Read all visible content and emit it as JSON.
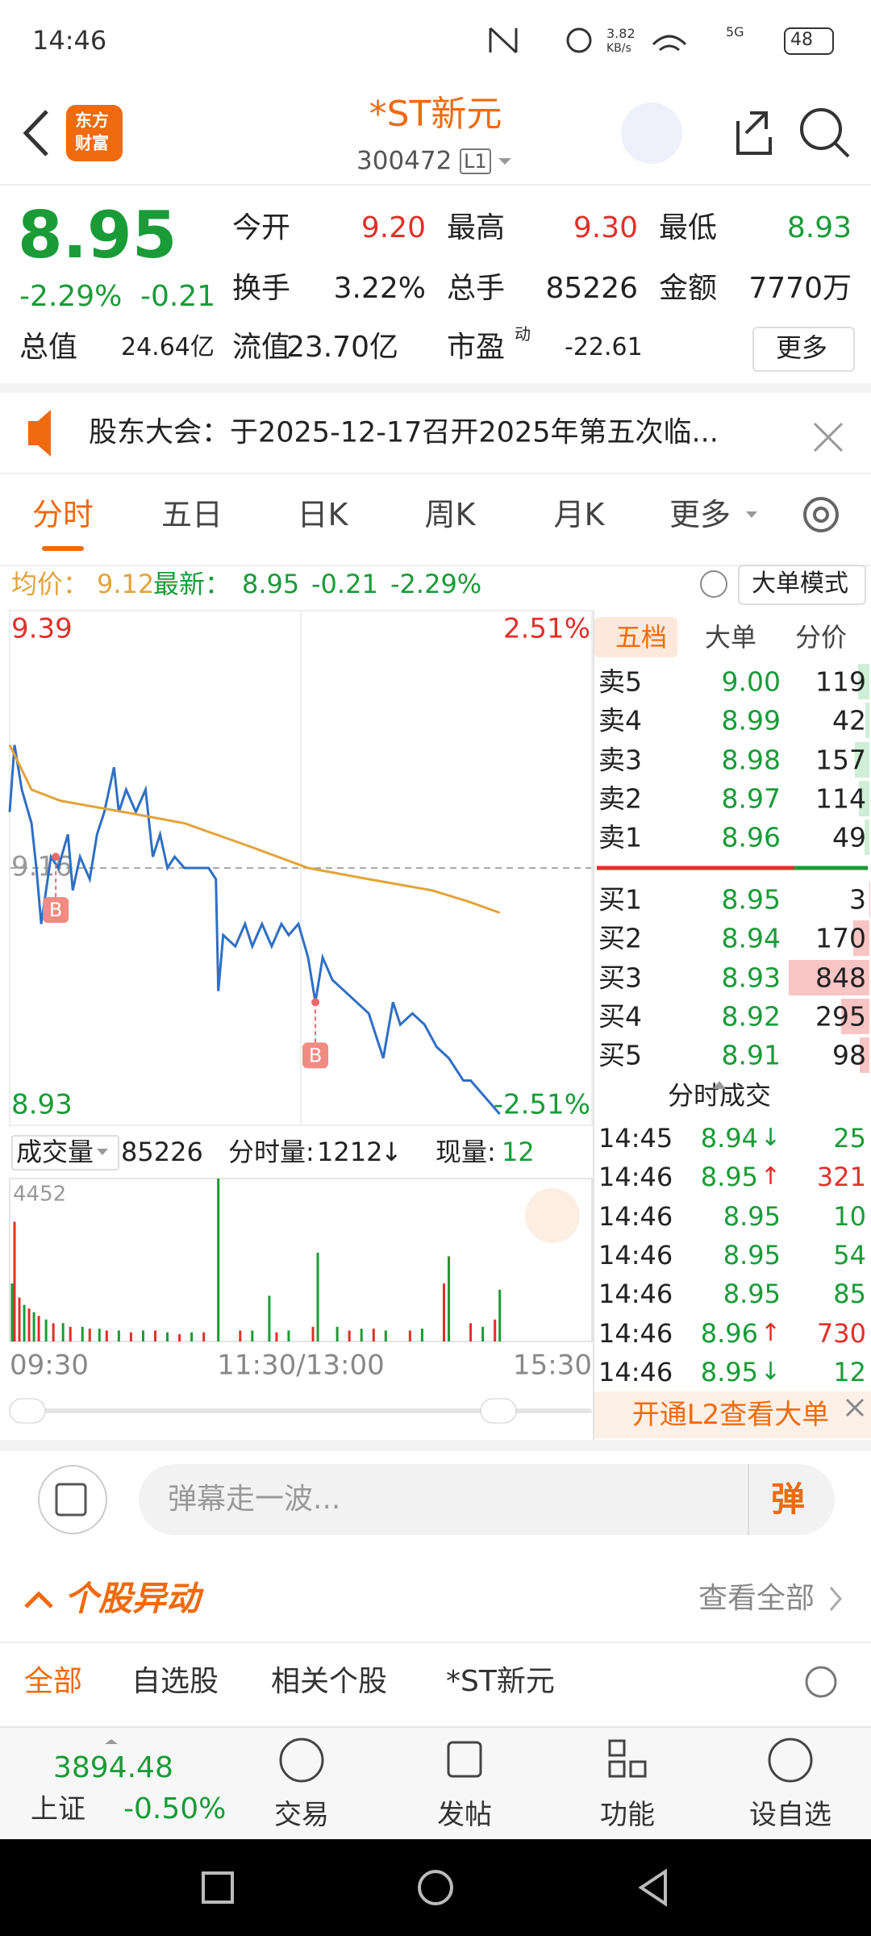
{
  "status_bar": {
    "time": "14:46",
    "net_speed": "3.82",
    "net_unit": "KB/s",
    "network": "5G",
    "battery": "48"
  },
  "header": {
    "logo": [
      "东方",
      "财富"
    ],
    "title": "*ST新元",
    "code": "300472",
    "level": "L1"
  },
  "quote": {
    "price": "8.95",
    "change_pct": "-2.29%",
    "change": "-0.21",
    "open": {
      "label": "今开",
      "value": "9.20"
    },
    "high": {
      "label": "最高",
      "value": "9.30"
    },
    "low": {
      "label": "最低",
      "value": "8.93"
    },
    "turnover": {
      "label": "换手",
      "value": "3.22%"
    },
    "volume": {
      "label": "总手",
      "value": "85226"
    },
    "amount": {
      "label": "金额",
      "value": "7770万"
    },
    "market_cap": {
      "label": "总值",
      "value": "24.64亿"
    },
    "float_cap": {
      "label": "流值",
      "value": "23.70亿"
    },
    "pe": {
      "label": "市盈",
      "sup": "动",
      "value": "-22.61"
    },
    "more": "更多"
  },
  "notice": "股东大会：于2025-12-17召开2025年第五次临...",
  "tabs": [
    "分时",
    "五日",
    "日K",
    "周K",
    "月K",
    "更多"
  ],
  "info": {
    "avg_label": "均价：",
    "avg": "9.12",
    "last_label": "最新：",
    "last": "8.95",
    "change": "-0.21",
    "pct": "-2.29%",
    "mode": "大单模式"
  },
  "chart_data": [
    {
      "type": "line",
      "xlim": [
        0,
        240
      ],
      "xticks": [
        {
          "value": 0,
          "label": "09:30"
        },
        {
          "value": 120,
          "label": "11:30/13:00"
        },
        {
          "value": 240,
          "label": "15:30"
        }
      ],
      "ylim": [
        8.93,
        9.39
      ],
      "yticks": [
        9.39,
        9.16,
        8.93
      ],
      "y2lim": [
        -2.51,
        2.51
      ],
      "y2ticks": [
        {
          "value": 2.51,
          "label": "2.51%"
        },
        {
          "value": -2.51,
          "label": "-2.51%"
        }
      ],
      "grid": true,
      "series": [
        {
          "name": "最新",
          "color": "#2f6fc4",
          "x": [
            0,
            2,
            5,
            9,
            11,
            13,
            15,
            17,
            20,
            24,
            26,
            29,
            33,
            36,
            39,
            43,
            45,
            48,
            52,
            56,
            59,
            62,
            65,
            68,
            72,
            77,
            82,
            85,
            86,
            88,
            93,
            97,
            100,
            104,
            108,
            112,
            115,
            119,
            123,
            126,
            129,
            133,
            138,
            143,
            148,
            154,
            158,
            161,
            166,
            171,
            176,
            181,
            187,
            190,
            194,
            198,
            202
          ],
          "values": [
            9.21,
            9.27,
            9.23,
            9.2,
            9.16,
            9.11,
            9.14,
            9.17,
            9.16,
            9.19,
            9.14,
            9.17,
            9.15,
            9.19,
            9.21,
            9.25,
            9.21,
            9.23,
            9.21,
            9.23,
            9.17,
            9.19,
            9.16,
            9.17,
            9.16,
            9.16,
            9.16,
            9.15,
            9.05,
            9.1,
            9.09,
            9.11,
            9.09,
            9.11,
            9.09,
            9.11,
            9.1,
            9.11,
            9.08,
            9.04,
            9.08,
            9.06,
            9.05,
            9.04,
            9.03,
            8.99,
            9.04,
            9.02,
            9.03,
            9.02,
            9.0,
            8.99,
            8.97,
            8.97,
            8.96,
            8.95,
            8.94
          ]
        },
        {
          "name": "均价",
          "color": "#e3a33a",
          "x": [
            0,
            9,
            21,
            47,
            72,
            98,
            123,
            148,
            174,
            189,
            202
          ],
          "values": [
            9.27,
            9.23,
            9.22,
            9.21,
            9.2,
            9.18,
            9.16,
            9.15,
            9.14,
            9.13,
            9.12
          ]
        }
      ],
      "annotations": [
        {
          "x": 19,
          "text": "B"
        },
        {
          "x": 126,
          "text": "B"
        }
      ]
    },
    {
      "type": "bar",
      "xlim": [
        0,
        240
      ],
      "ylim": [
        0,
        4452
      ],
      "yticks": [
        4452
      ],
      "series": [
        {
          "name": "up",
          "color": "#e0302a",
          "x": [
            2,
            4,
            8,
            12,
            18,
            25,
            33,
            40,
            50,
            60,
            70,
            80,
            95,
            110,
            125,
            140,
            150,
            165,
            179,
            190,
            200
          ],
          "values": [
            3272,
            1200,
            900,
            700,
            500,
            400,
            350,
            300,
            250,
            300,
            200,
            250,
            300,
            250,
            400,
            300,
            350,
            300,
            1585,
            500,
            600
          ]
        },
        {
          "name": "down",
          "color": "#1a9b38",
          "x": [
            1,
            6,
            10,
            15,
            22,
            30,
            37,
            45,
            55,
            65,
            75,
            86,
            100,
            107,
            115,
            127,
            135,
            145,
            155,
            170,
            181,
            195,
            202
          ],
          "values": [
            1585,
            1000,
            800,
            600,
            500,
            400,
            350,
            300,
            300,
            250,
            250,
            4452,
            300,
            1248,
            300,
            2428,
            400,
            350,
            300,
            350,
            2327,
            400,
            1416
          ]
        }
      ]
    }
  ],
  "volume_header": {
    "label": "成交量",
    "total": "85226",
    "period_label": "分时量:",
    "period": "1212",
    "period_arrow": "↓",
    "current_label": "现量:",
    "current": "12"
  },
  "order_book": {
    "tabs": [
      "五档",
      "大单",
      "分价"
    ],
    "asks": [
      {
        "label": "卖5",
        "price": "9.00",
        "volume": 119
      },
      {
        "label": "卖4",
        "price": "8.99",
        "volume": 42
      },
      {
        "label": "卖3",
        "price": "8.98",
        "volume": 157
      },
      {
        "label": "卖2",
        "price": "8.97",
        "volume": 114
      },
      {
        "label": "卖1",
        "price": "8.96",
        "volume": 49
      }
    ],
    "bids": [
      {
        "label": "买1",
        "price": "8.95",
        "volume": 3
      },
      {
        "label": "买2",
        "price": "8.94",
        "volume": 170
      },
      {
        "label": "买3",
        "price": "8.93",
        "volume": 848
      },
      {
        "label": "买4",
        "price": "8.92",
        "volume": 295
      },
      {
        "label": "买5",
        "price": "8.91",
        "volume": 98
      }
    ]
  },
  "trades": {
    "title": "分时成交",
    "rows": [
      {
        "time": "14:45",
        "price": "8.94",
        "arrow": "↓",
        "volume": "25"
      },
      {
        "time": "14:46",
        "price": "8.95",
        "arrow": "↑",
        "volume": "321"
      },
      {
        "time": "14:46",
        "price": "8.95",
        "volume": "10"
      },
      {
        "time": "14:46",
        "price": "8.95",
        "volume": "54"
      },
      {
        "time": "14:46",
        "price": "8.95",
        "volume": "85"
      },
      {
        "time": "14:46",
        "price": "8.96",
        "arrow": "↑",
        "volume": "730"
      },
      {
        "time": "14:46",
        "price": "8.95",
        "arrow": "↓",
        "volume": "12"
      }
    ],
    "l2": "开通L2查看大单"
  },
  "danmu": {
    "placeholder": "弹幕走一波...",
    "button": "弹"
  },
  "movers": {
    "title": "个股异动",
    "view_all": "查看全部",
    "tabs": [
      "全部",
      "自选股",
      "相关个股",
      "*ST新元"
    ]
  },
  "bottom_nav": {
    "index_value": "3894.48",
    "index_name": "上证",
    "index_change": "-0.50%",
    "items": [
      "交易",
      "发帖",
      "功能",
      "设自选"
    ]
  }
}
